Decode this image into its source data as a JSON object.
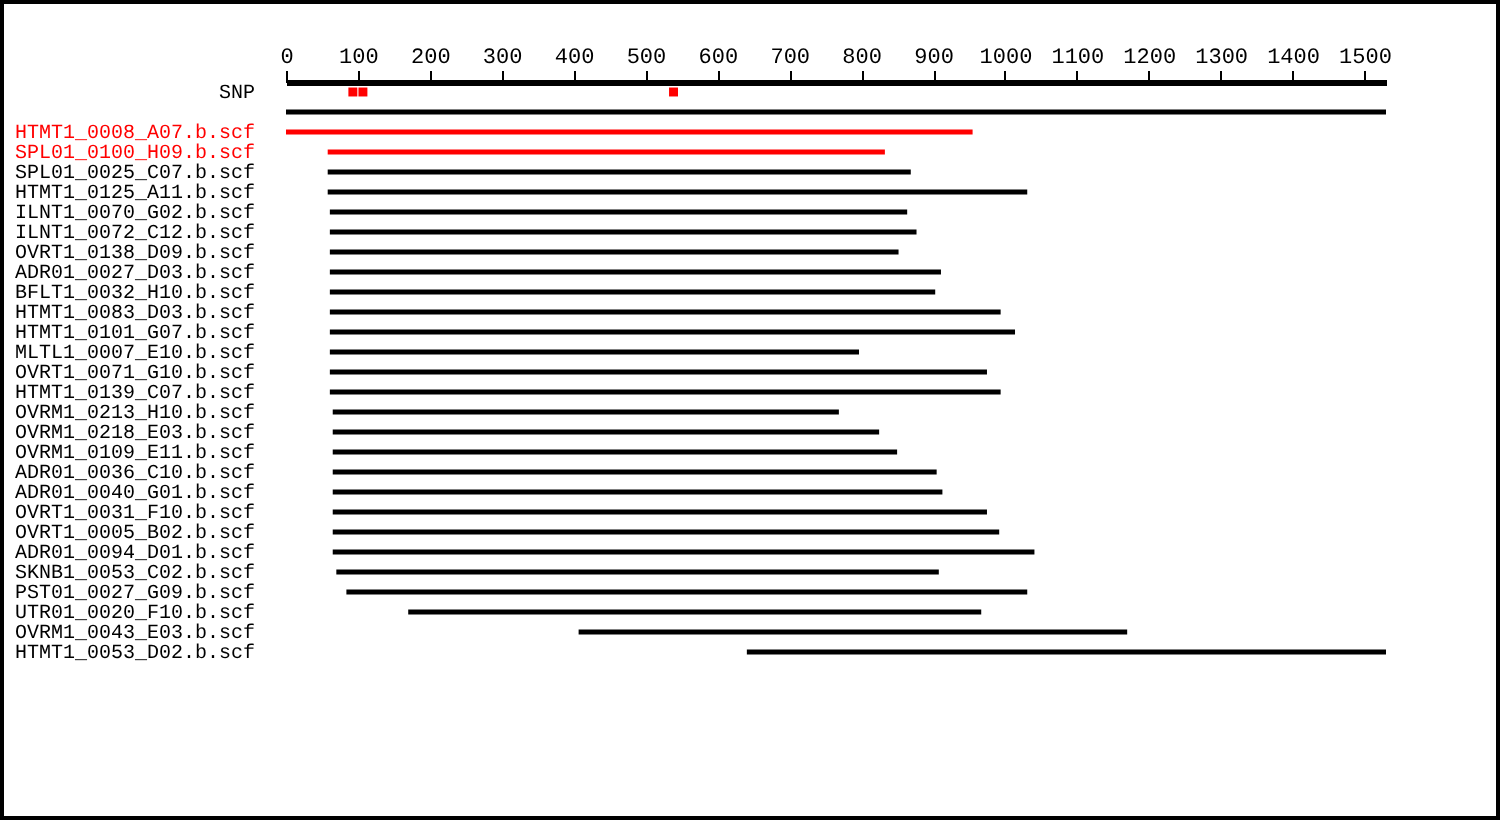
{
  "chart_data": {
    "type": "bar",
    "orientation": "horizontal",
    "categories": [
      "SNP",
      null,
      "HTMT1_0008_A07.b.scf",
      "SPL01_0100_H09.b.scf",
      "SPL01_0025_C07.b.scf",
      "HTMT1_0125_A11.b.scf",
      "ILNT1_0070_G02.b.scf",
      "ILNT1_0072_C12.b.scf",
      "OVRT1_0138_D09.b.scf",
      "ADR01_0027_D03.b.scf",
      "BFLT1_0032_H10.b.scf",
      "HTMT1_0083_D03.b.scf",
      "HTMT1_0101_G07.b.scf",
      "MLTL1_0007_E10.b.scf",
      "OVRT1_0071_G10.b.scf",
      "HTMT1_0139_C07.b.scf",
      "OVRM1_0213_H10.b.scf",
      "OVRM1_0218_E03.b.scf",
      "OVRM1_0109_E11.b.scf",
      "ADR01_0036_C10.b.scf",
      "ADR01_0040_G01.b.scf",
      "OVRT1_0031_F10.b.scf",
      "OVRT1_0005_B02.b.scf",
      "ADR01_0094_D01.b.scf",
      "SKNB1_0053_C02.b.scf",
      "PST01_0027_G09.b.scf",
      "UTR01_0020_F10.b.scf",
      "OVRM1_0043_E03.b.scf",
      "HTMT1_0053_D02.b.scf"
    ],
    "xlim": [
      0,
      1530
    ],
    "xticks": [
      0,
      100,
      200,
      300,
      400,
      500,
      600,
      700,
      800,
      900,
      1000,
      1100,
      1200,
      1300,
      1400,
      1500
    ],
    "series": [
      {
        "type": "bar",
        "colors": [
          "#000000",
          "#000000",
          "#ff0000",
          "#ff0000",
          "#000000",
          "#000000",
          "#000000",
          "#000000",
          "#000000",
          "#000000",
          "#000000",
          "#000000",
          "#000000",
          "#000000",
          "#000000",
          "#000000",
          "#000000",
          "#000000",
          "#000000",
          "#000000",
          "#000000",
          "#000000",
          "#000000",
          "#000000",
          "#000000",
          "#000000",
          "#000000",
          "#000000",
          "#000000"
        ],
        "base": [
          null,
          0,
          0,
          58,
          58,
          58,
          61,
          61,
          61,
          61,
          61,
          61,
          61,
          61,
          61,
          61,
          65,
          65,
          65,
          65,
          65,
          65,
          65,
          65,
          70,
          84,
          170,
          407,
          641
        ],
        "values": [
          null,
          1530,
          955,
          775,
          811,
          973,
          803,
          816,
          791,
          850,
          842,
          933,
          953,
          736,
          914,
          933,
          704,
          760,
          785,
          840,
          848,
          910,
          927,
          976,
          838,
          947,
          797,
          763,
          889
        ]
      },
      {
        "type": "scatter",
        "color": "#ff0000",
        "marker": "square",
        "x": [
          "SNP",
          "SNP",
          "SNP"
        ],
        "values": [
          93,
          107,
          539
        ]
      }
    ],
    "grid": false
  }
}
